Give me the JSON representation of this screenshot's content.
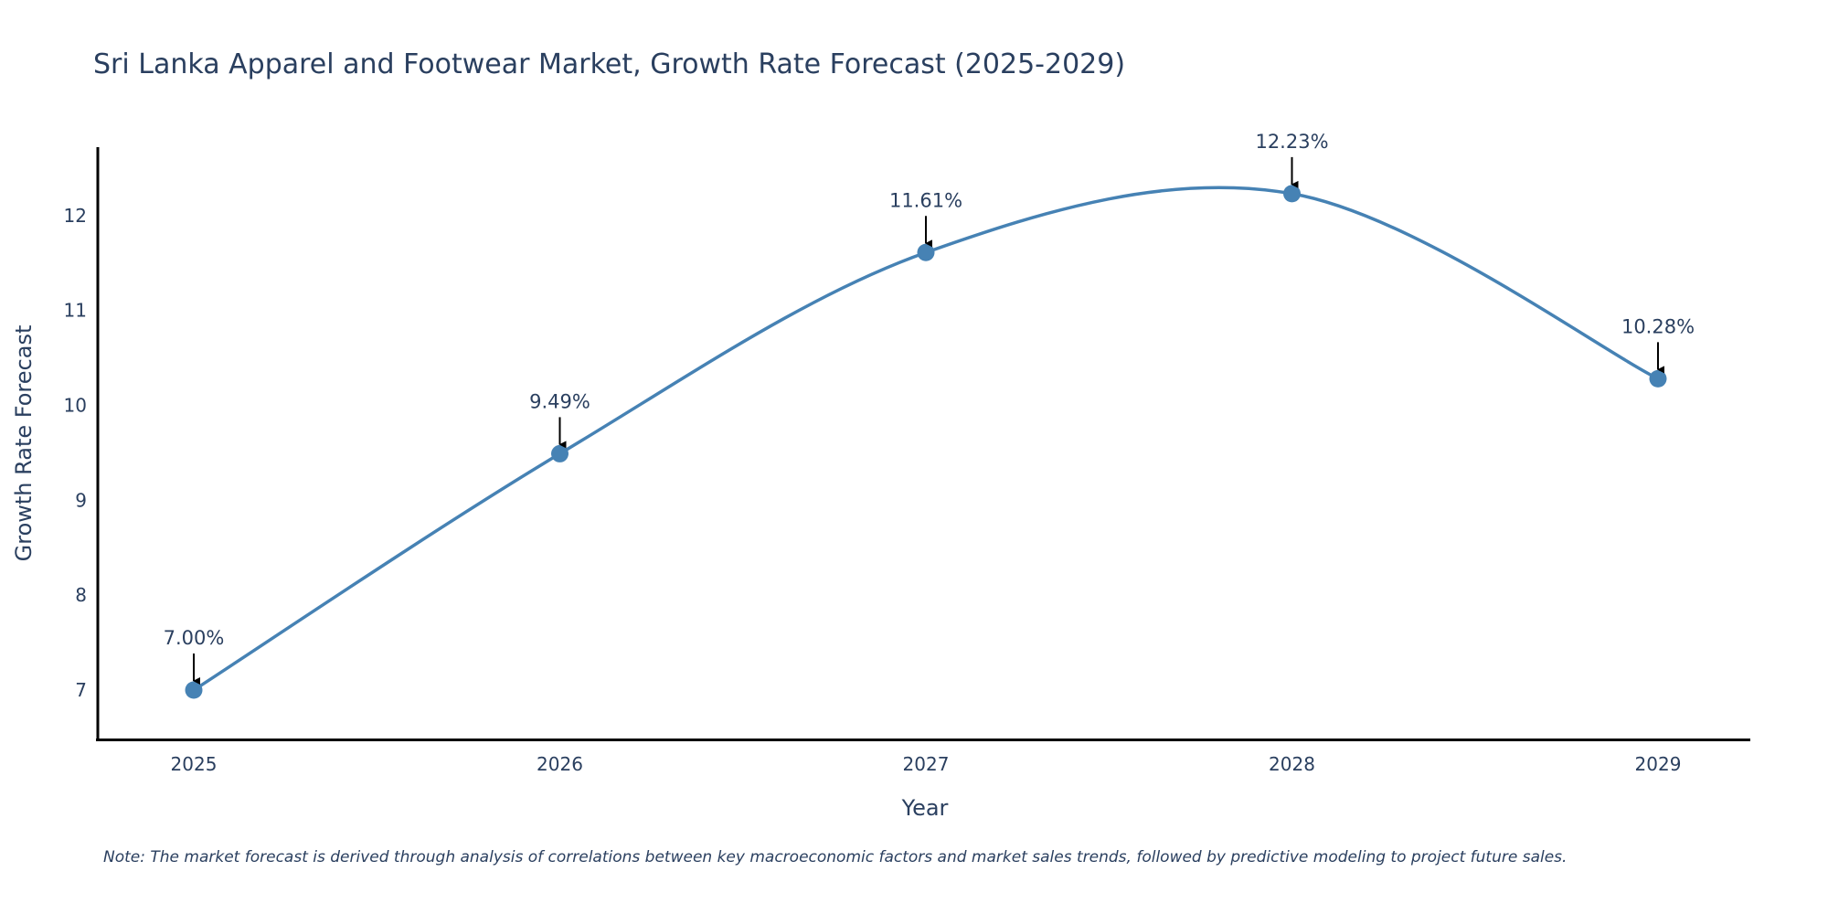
{
  "chart_data": {
    "type": "line",
    "title": "Sri Lanka Apparel and Footwear Market, Growth Rate Forecast (2025-2029)",
    "xlabel": "Year",
    "ylabel": "Growth Rate Forecast",
    "categories": [
      "2025",
      "2026",
      "2027",
      "2028",
      "2029"
    ],
    "series": [
      {
        "name": "Growth Rate Forecast",
        "values": [
          7.0,
          9.49,
          11.61,
          12.23,
          10.28
        ],
        "labels": [
          "7.00%",
          "9.49%",
          "11.61%",
          "12.23%",
          "10.28%"
        ]
      }
    ],
    "y_ticks": [
      "7",
      "8",
      "9",
      "10",
      "11",
      "12"
    ],
    "ylim": [
      6.48,
      12.72
    ],
    "grid": false,
    "line_shape": "spline",
    "note": "Note: The market forecast is derived through analysis of correlations between key macroeconomic factors and market sales trends, followed by predictive modeling to project future sales."
  },
  "colors": {
    "line": "#4682b4",
    "text": "#2a3f5f",
    "axis": "#000000",
    "arrow": "#000000"
  }
}
